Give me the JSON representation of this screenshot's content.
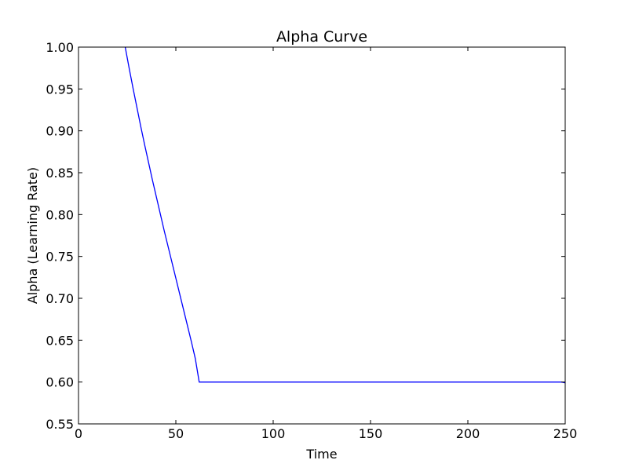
{
  "chart_data": {
    "type": "line",
    "title": "Alpha Curve",
    "xlabel": "Time",
    "ylabel": "Alpha (Learning Rate)",
    "xlim": [
      0,
      250
    ],
    "ylim": [
      0.55,
      1.0
    ],
    "xticks": [
      "0",
      "50",
      "100",
      "150",
      "200",
      "250"
    ],
    "yticks": [
      "0.55",
      "0.60",
      "0.65",
      "0.70",
      "0.75",
      "0.80",
      "0.85",
      "0.90",
      "0.95",
      "1.00"
    ],
    "grid": false,
    "legend": false,
    "series": [
      {
        "color": "#0000ff",
        "x": [
          24,
          26,
          28,
          30,
          32,
          34,
          36,
          38,
          40,
          42,
          44,
          46,
          48,
          50,
          52,
          54,
          56,
          58,
          60,
          62,
          65,
          70,
          80,
          100,
          150,
          200,
          248,
          250
        ],
        "y": [
          1.0,
          0.975,
          0.951,
          0.928,
          0.905,
          0.883,
          0.862,
          0.841,
          0.821,
          0.801,
          0.781,
          0.762,
          0.743,
          0.724,
          0.705,
          0.686,
          0.667,
          0.648,
          0.628,
          0.6,
          0.6,
          0.6,
          0.6,
          0.6,
          0.6,
          0.6,
          0.6,
          0.599
        ]
      }
    ]
  }
}
